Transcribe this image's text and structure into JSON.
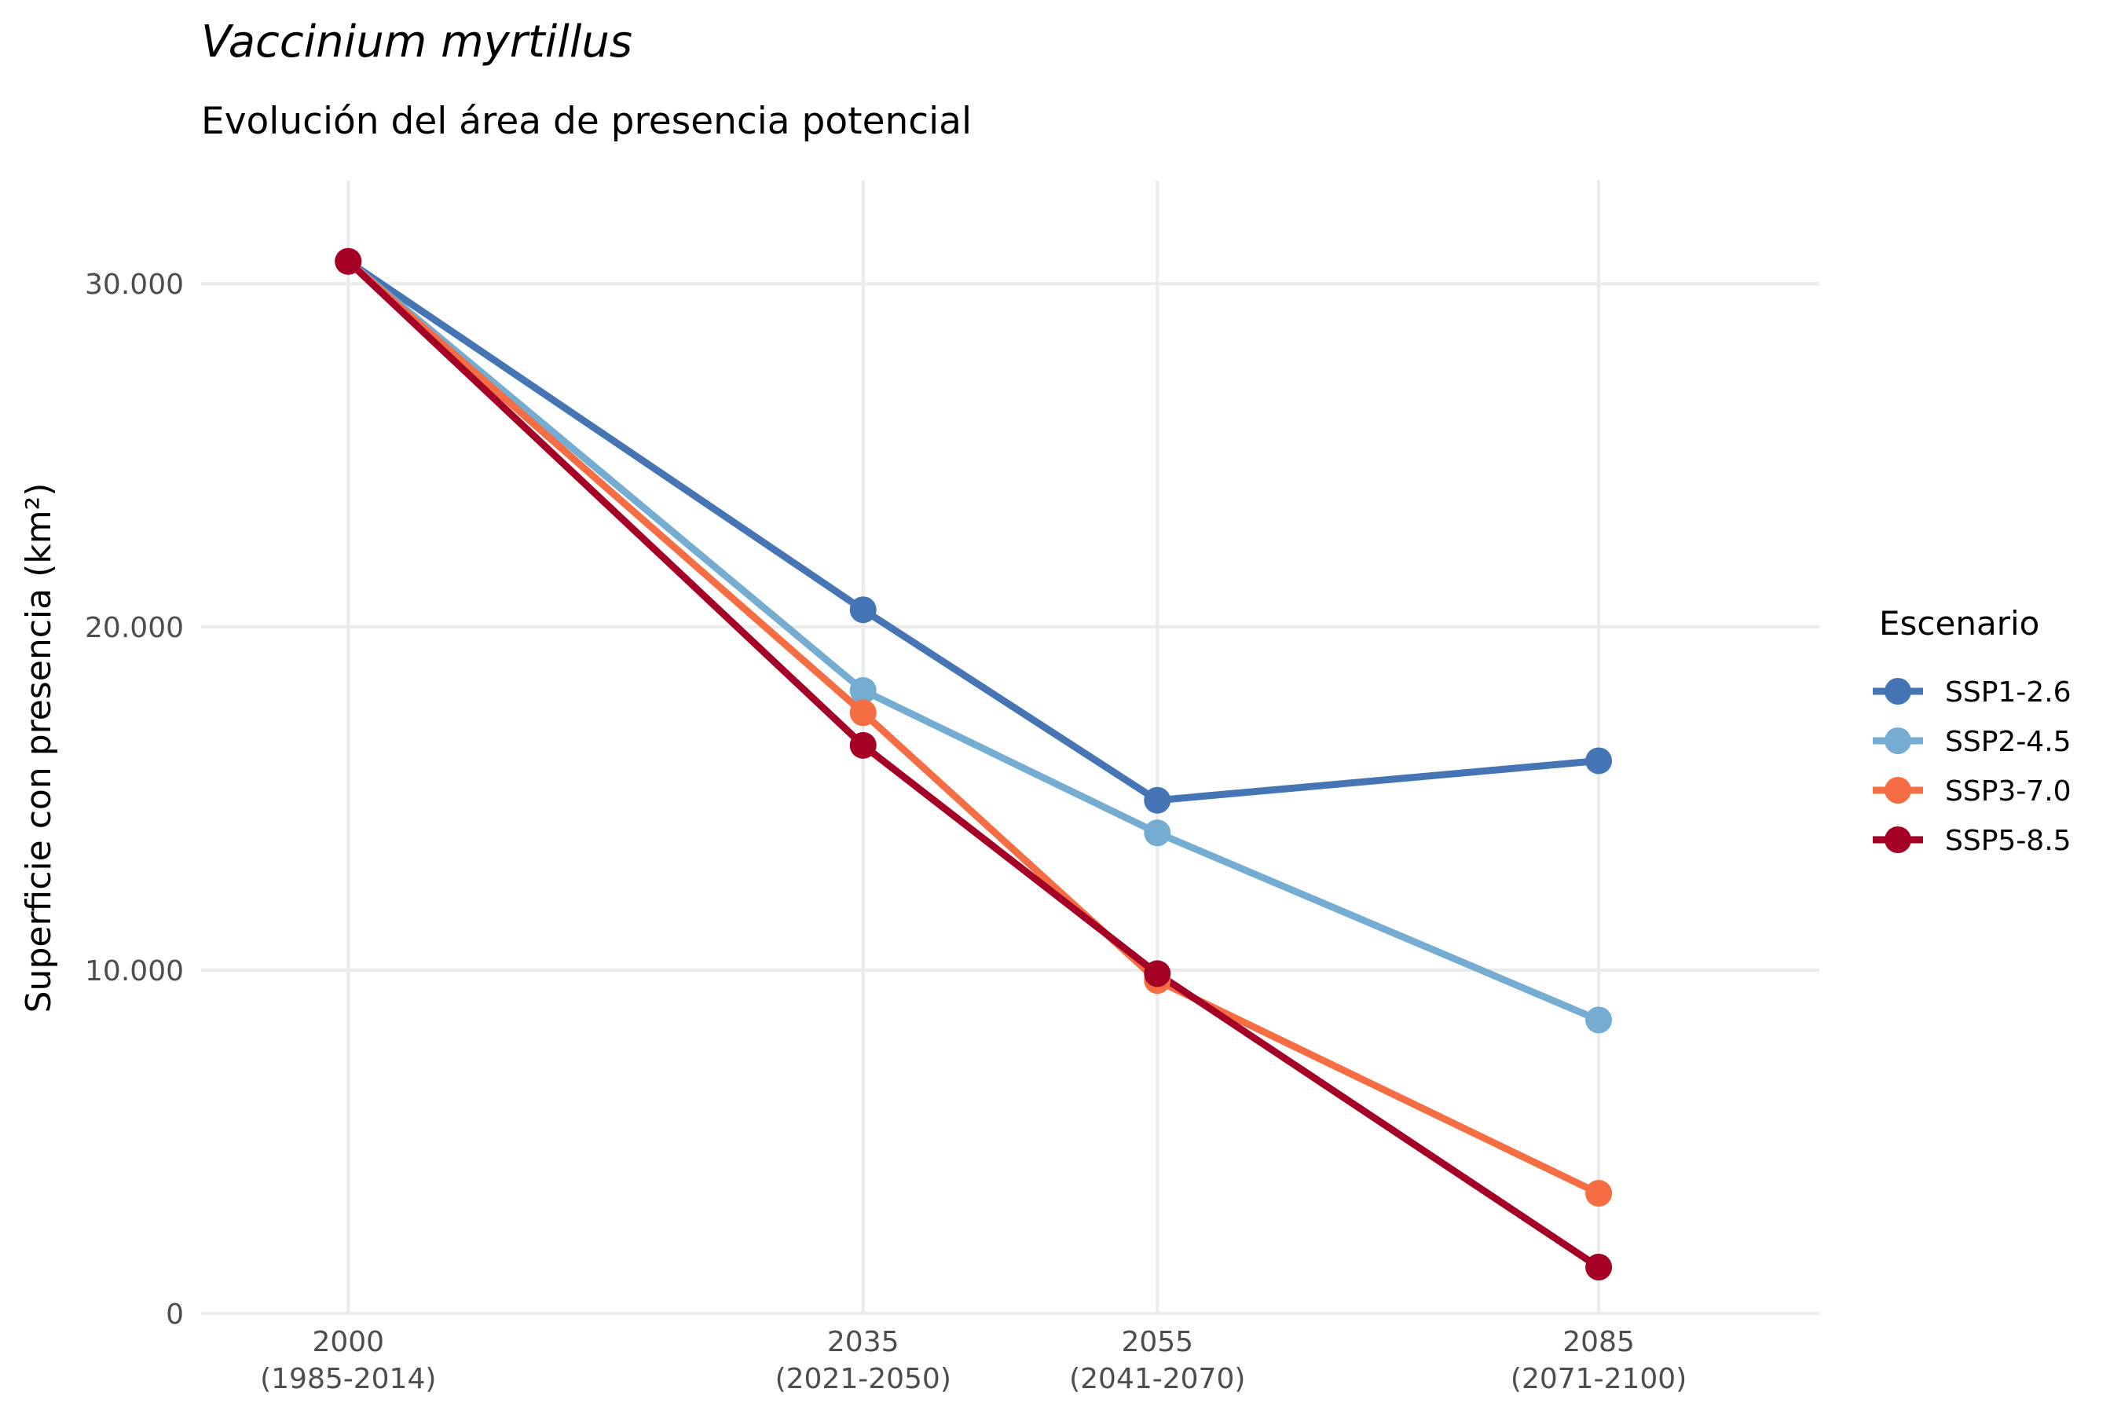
{
  "chart_data": {
    "type": "line",
    "title": "Vaccinium myrtillus",
    "subtitle": "Evolución del área de presencia potencial",
    "xlabel": "",
    "ylabel": "Superficie con presencia (km²)",
    "x": [
      2000,
      2035,
      2055,
      2085
    ],
    "x_tick_labels": [
      [
        "2000",
        "(1985-2014)"
      ],
      [
        "2035",
        "(2021-2050)"
      ],
      [
        "2055",
        "(2041-2070)"
      ],
      [
        "2085",
        "(2071-2100)"
      ]
    ],
    "xlim": [
      1990,
      2100
    ],
    "ylim": [
      0,
      33000
    ],
    "y_ticks": [
      0,
      10000,
      20000,
      30000
    ],
    "y_tick_labels": [
      "0",
      "10.000",
      "20.000",
      "30.000"
    ],
    "grid": true,
    "legend": {
      "title": "Escenario",
      "position": "right"
    },
    "series": [
      {
        "name": "SSP1-2.6",
        "color": "#4575b4",
        "values": [
          30650,
          20500,
          14950,
          16100
        ]
      },
      {
        "name": "SSP2-4.5",
        "color": "#74add1",
        "values": [
          30650,
          18150,
          14000,
          8550
        ]
      },
      {
        "name": "SSP3-7.0",
        "color": "#f46d43",
        "values": [
          30650,
          17500,
          9700,
          3500
        ]
      },
      {
        "name": "SSP5-8.5",
        "color": "#a50026",
        "values": [
          30650,
          16550,
          9900,
          1350
        ]
      }
    ]
  }
}
